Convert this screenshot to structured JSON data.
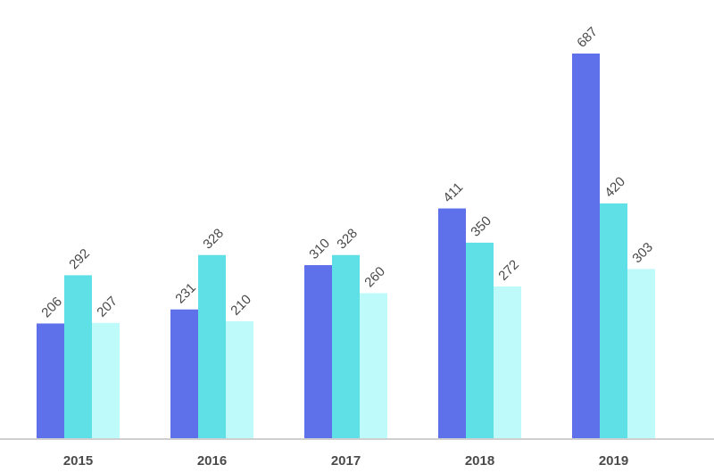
{
  "chart_data": {
    "type": "bar",
    "title": "",
    "xlabel": "",
    "ylabel": "",
    "categories": [
      "2015",
      "2016",
      "2017",
      "2018",
      "2019"
    ],
    "series": [
      {
        "values": [
          206,
          231,
          310,
          411,
          687
        ],
        "color": "#5f71ea"
      },
      {
        "values": [
          292,
          328,
          328,
          350,
          420
        ],
        "color": "#5ee0e6"
      },
      {
        "values": [
          207,
          210,
          260,
          272,
          303
        ],
        "color": "#bdfaf9"
      }
    ],
    "ylim": [
      0,
      687
    ],
    "grid": false,
    "legend": "none",
    "data_labels": true,
    "label_rotation": -45,
    "axis_color": "#cfcfcf",
    "text_color": "#4a4a4a"
  }
}
